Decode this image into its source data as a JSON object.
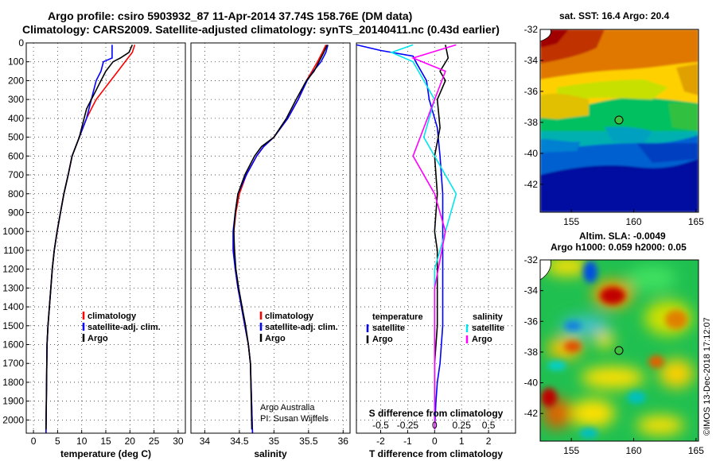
{
  "header": {
    "line1": "Argo profile: csiro 5903932_87 11-Apr-2014 37.74S 158.76E (DM data)",
    "line2": "Climatology: CARS2009. Satellite-adjusted climatology: synTS_20140411.nc (0.43d earlier)"
  },
  "colors": {
    "climatology": "#ff0000",
    "satellite": "#0000ff",
    "argo": "#000000",
    "sat_salinity": "#00e5ee",
    "argo_salinity": "#ff00ff"
  },
  "chart_data": [
    {
      "type": "line",
      "id": "temperature",
      "title": "",
      "xlabel": "temperature (deg C)",
      "ylabel": "",
      "xlim": [
        -1.5,
        31.5
      ],
      "ylim": [
        2070,
        0
      ],
      "xticks": [
        0,
        5,
        10,
        15,
        20,
        25,
        30
      ],
      "yticks": [
        0,
        100,
        200,
        300,
        400,
        500,
        600,
        700,
        800,
        900,
        1000,
        1100,
        1200,
        1300,
        1400,
        1500,
        1600,
        1700,
        1800,
        1900,
        2000
      ],
      "legend": [
        "climatology",
        "satellite-adj. clim.",
        "Argo"
      ],
      "series": [
        {
          "name": "climatology",
          "color": "#ff0000",
          "x": [
            21,
            20.5,
            19,
            17.5,
            16,
            14.5,
            13,
            12,
            11,
            9.5,
            8,
            7.2,
            6.3,
            5.6,
            4.9,
            4.3,
            3.9,
            3.6,
            3.3,
            3.0,
            2.8,
            2.6
          ],
          "y": [
            10,
            50,
            100,
            150,
            200,
            250,
            300,
            350,
            400,
            500,
            600,
            700,
            800,
            900,
            1000,
            1100,
            1200,
            1300,
            1400,
            1500,
            1600,
            2070
          ]
        },
        {
          "name": "satellite-adj. clim.",
          "color": "#0000ff",
          "x": [
            16.3,
            16.3,
            14.5,
            14,
            13,
            12,
            11,
            9.5,
            8,
            7.2,
            6.3,
            5.6,
            4.9,
            4.3,
            3.9,
            3.6,
            3.3,
            3.0,
            2.8,
            2.6
          ],
          "y": [
            10,
            80,
            100,
            150,
            200,
            300,
            400,
            500,
            600,
            700,
            800,
            900,
            1000,
            1100,
            1200,
            1300,
            1400,
            1500,
            1600,
            2070
          ]
        },
        {
          "name": "Argo",
          "color": "#000000",
          "x": [
            20.5,
            19.8,
            18,
            16.5,
            15,
            14,
            13,
            12,
            11,
            10,
            9.5,
            8,
            7.2,
            6.3,
            5.6,
            4.9,
            4.3,
            3.9,
            3.6,
            3.3,
            3.0,
            2.8,
            2.6
          ],
          "y": [
            10,
            50,
            80,
            100,
            150,
            200,
            250,
            300,
            350,
            450,
            500,
            600,
            700,
            800,
            900,
            1000,
            1100,
            1200,
            1300,
            1400,
            1500,
            1600,
            2050
          ]
        }
      ]
    },
    {
      "type": "line",
      "id": "salinity",
      "title": "",
      "xlabel": "salinity",
      "ylabel": "",
      "xlim": [
        33.8,
        36.1
      ],
      "ylim": [
        2070,
        0
      ],
      "xticks": [
        34,
        34.5,
        35,
        35.5,
        36
      ],
      "legend": [
        "climatology",
        "satellite-adj. clim.",
        "Argo"
      ],
      "series": [
        {
          "name": "climatology",
          "color": "#ff0000",
          "x": [
            35.75,
            35.7,
            35.63,
            35.55,
            35.47,
            35.35,
            35.2,
            35.0,
            34.85,
            34.75,
            34.6,
            34.5,
            34.45,
            34.42,
            34.42,
            34.44,
            34.48,
            34.53,
            34.58,
            34.63,
            34.66,
            34.69
          ],
          "y": [
            10,
            50,
            100,
            150,
            200,
            300,
            400,
            500,
            550,
            600,
            700,
            800,
            900,
            1000,
            1100,
            1200,
            1300,
            1400,
            1500,
            1600,
            1700,
            2070
          ]
        },
        {
          "name": "satellite-adj. clim.",
          "color": "#0000ff",
          "x": [
            35.78,
            35.75,
            35.68,
            35.57,
            35.48,
            35.35,
            35.2,
            35.0,
            34.85,
            34.75,
            34.6,
            34.48,
            34.44,
            34.41,
            34.41,
            34.44,
            34.48,
            34.53,
            34.58,
            34.63,
            34.66,
            34.69
          ],
          "y": [
            10,
            50,
            100,
            150,
            200,
            300,
            400,
            500,
            550,
            600,
            700,
            800,
            900,
            1000,
            1100,
            1200,
            1300,
            1400,
            1500,
            1600,
            1700,
            2070
          ]
        },
        {
          "name": "Argo",
          "color": "#000000",
          "x": [
            35.77,
            35.72,
            35.65,
            35.58,
            35.47,
            35.32,
            35.18,
            35.0,
            34.82,
            34.72,
            34.58,
            34.48,
            34.44,
            34.42,
            34.43,
            34.45,
            34.49,
            34.54,
            34.59,
            34.63,
            34.66,
            34.68
          ],
          "y": [
            10,
            50,
            100,
            150,
            200,
            300,
            400,
            500,
            550,
            600,
            700,
            800,
            900,
            1000,
            1100,
            1200,
            1300,
            1400,
            1500,
            1600,
            1700,
            2050
          ]
        }
      ],
      "annotations": [
        "Argo Australia",
        "PI: Susan Wijffels"
      ]
    },
    {
      "type": "line",
      "id": "difference",
      "title": "",
      "xlabel": "T difference from climatology",
      "ylabel": "",
      "xlim": [
        -2.9,
        3.0
      ],
      "ylim": [
        2070,
        0
      ],
      "xticks": [
        -2,
        -1,
        0,
        1,
        2
      ],
      "xlabel2": "S difference from climatology",
      "xticks2": [
        "-0.5",
        "-0.25",
        "0",
        "0.25",
        "0.5"
      ],
      "legend_temperature": {
        "title": "temperature",
        "items": [
          "satellite",
          "Argo"
        ]
      },
      "legend_salinity": {
        "title": "salinity",
        "items": [
          "satellite",
          "Argo"
        ]
      },
      "series": [
        {
          "name": "temperature satellite",
          "color": "#0000ff",
          "x": [
            -2.9,
            -2.0,
            -0.8,
            -0.7,
            -0.3,
            -0.2,
            0.1,
            0.2,
            0.3,
            0.3,
            0.3,
            0.3,
            0.3,
            0.2,
            0.1,
            0.05,
            0.0
          ],
          "y": [
            10,
            40,
            70,
            100,
            200,
            300,
            450,
            600,
            800,
            1000,
            1100,
            1300,
            1500,
            1700,
            1800,
            1900,
            2050
          ]
        },
        {
          "name": "temperature Argo",
          "color": "#000000",
          "x": [
            0.4,
            0.5,
            0.2,
            0.4,
            0.1,
            0.2,
            0.0,
            0.1,
            0.0,
            0.1,
            0.1,
            0.1,
            0.0,
            0.0,
            0.0,
            0.0
          ],
          "y": [
            10,
            80,
            150,
            200,
            300,
            450,
            600,
            800,
            1000,
            1100,
            1300,
            1500,
            1700,
            1800,
            1900,
            2050
          ]
        },
        {
          "name": "salinity satellite",
          "color": "#00e5ee",
          "x": [
            -0.2,
            -0.4,
            -0.2,
            -0.1,
            0.0,
            -0.1,
            0.2,
            0.1,
            0.0,
            0.0,
            0.0,
            0.0
          ],
          "y": [
            10,
            50,
            100,
            200,
            300,
            500,
            800,
            1000,
            1200,
            1400,
            1700,
            2050
          ]
        },
        {
          "name": "salinity Argo",
          "color": "#ff00ff",
          "x": [
            0.2,
            -0.2,
            0.1,
            0.0,
            -0.2,
            0.0,
            0.1,
            0.0,
            0.0,
            0.0
          ],
          "y": [
            10,
            80,
            150,
            300,
            600,
            800,
            1000,
            1300,
            1700,
            2050
          ]
        }
      ]
    },
    {
      "type": "heatmap",
      "id": "sst-map",
      "title": "sat. SST: 16.4 Argo: 20.4",
      "xlim": [
        152.5,
        165.2
      ],
      "ylim": [
        -43.8,
        -32
      ],
      "xticks": [
        155,
        160,
        165
      ],
      "yticks": [
        -32,
        -34,
        -36,
        -38,
        -40,
        -42
      ],
      "marker": {
        "lon": 158.76,
        "lat": -37.74
      }
    },
    {
      "type": "heatmap",
      "id": "sla-map",
      "title": "Altim. SLA: -0.0049",
      "subtitle": "Argo h1000: 0.059 h2000: 0.05",
      "xlim": [
        152.5,
        165.2
      ],
      "ylim": [
        -43.8,
        -32
      ],
      "xticks": [
        155,
        160,
        165
      ],
      "yticks": [
        -32,
        -34,
        -36,
        -38,
        -40,
        -42
      ],
      "marker": {
        "lon": 158.76,
        "lat": -37.74
      }
    }
  ],
  "watermark": "©IMOS 13-Dec-2018 17:12:07"
}
